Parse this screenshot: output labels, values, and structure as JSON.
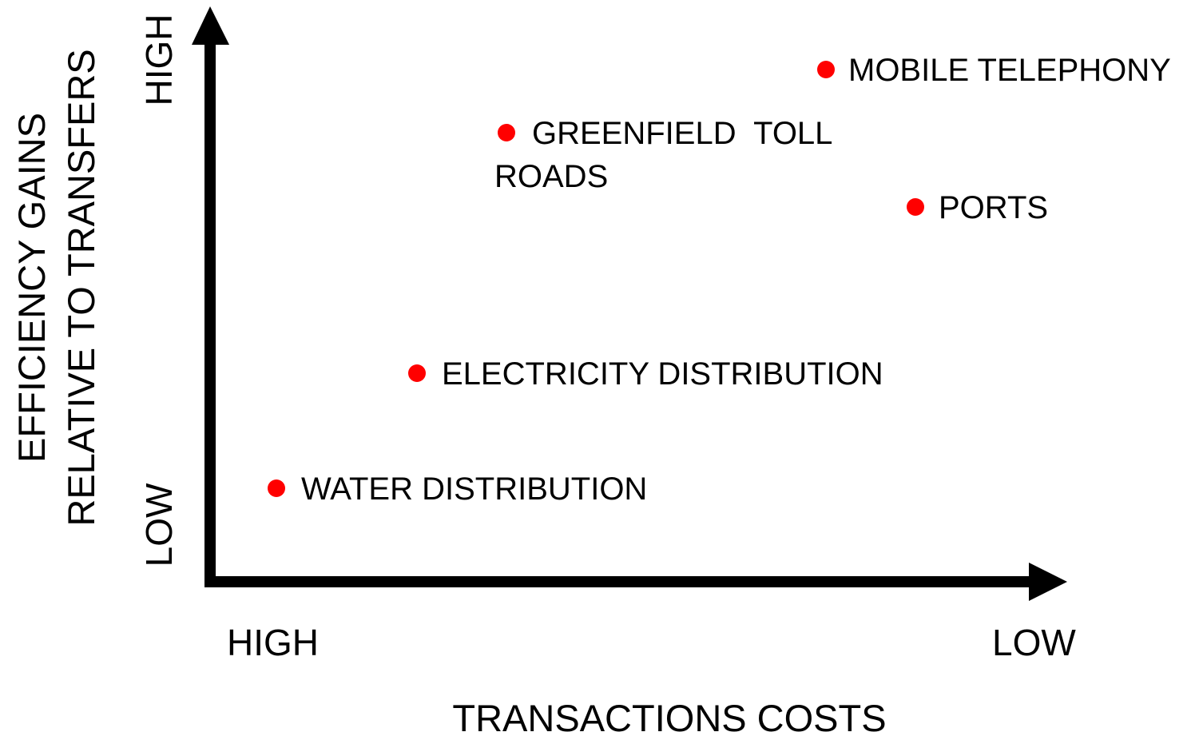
{
  "y_axis": {
    "title": [
      "EFFICIENCY GAINS",
      "RELATIVE TO TRANSFERS"
    ],
    "high": "HIGH",
    "low": "LOW"
  },
  "x_axis": {
    "title": "TRANSACTIONS COSTS",
    "high": "HIGH",
    "low": "LOW"
  },
  "points": [
    {
      "label": [
        "MOBILE TELEPHONY"
      ]
    },
    {
      "label": [
        "GREENFIELD  TOLL",
        "ROADS"
      ]
    },
    {
      "label": [
        "PORTS"
      ]
    },
    {
      "label": [
        "ELECTRICITY DISTRIBUTION"
      ]
    },
    {
      "label": [
        "WATER DISTRIBUTION"
      ]
    }
  ]
}
